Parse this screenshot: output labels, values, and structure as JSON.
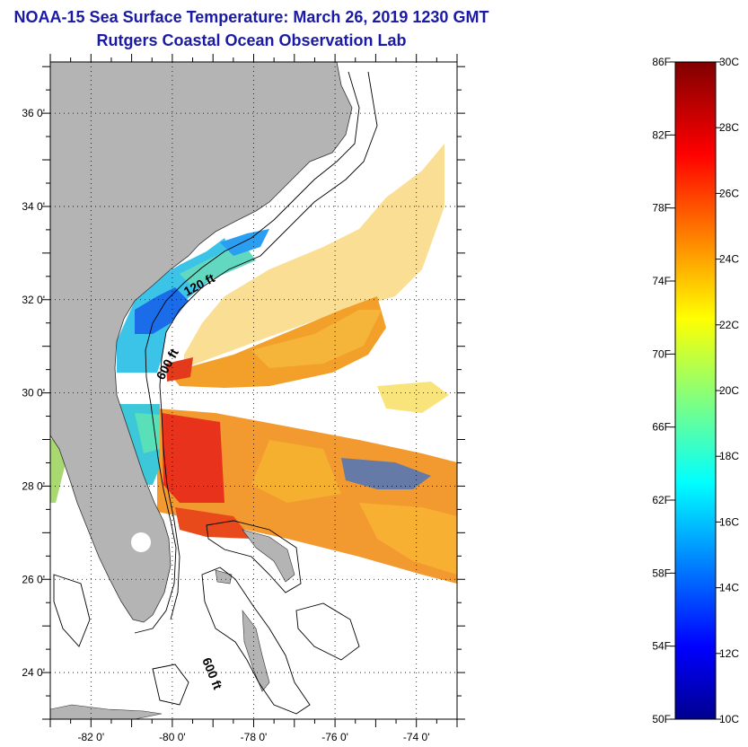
{
  "header": {
    "title": "NOAA-15 Sea Surface Temperature:  March 26, 2019 1230 GMT",
    "subtitle": "Rutgers Coastal Ocean Observation Lab"
  },
  "map": {
    "lat_ticks": [
      {
        "label": "36 0'",
        "lat": 36
      },
      {
        "label": "34 0'",
        "lat": 34
      },
      {
        "label": "32 0'",
        "lat": 32
      },
      {
        "label": "30 0'",
        "lat": 30
      },
      {
        "label": "28 0'",
        "lat": 28
      },
      {
        "label": "26 0'",
        "lat": 26
      },
      {
        "label": "24 0'",
        "lat": 24
      }
    ],
    "lon_ticks": [
      {
        "label": "-82 0'",
        "lon": -82
      },
      {
        "label": "-80 0'",
        "lon": -80
      },
      {
        "label": "-78 0'",
        "lon": -78
      },
      {
        "label": "-76 0'",
        "lon": -76
      },
      {
        "label": "-74 0'",
        "lon": -74
      }
    ],
    "lat_range": [
      23,
      37.1
    ],
    "lon_range": [
      -83,
      -73
    ],
    "contour_labels": {
      "shelf_120": "120 ft",
      "slope_600_north": "600 ft",
      "slope_600_south": "600 ft"
    },
    "land_color": "#b4b4b4",
    "grid": "dotted"
  },
  "colorbar": {
    "fahrenheit_labels": [
      "86F",
      "82F",
      "78F",
      "74F",
      "70F",
      "66F",
      "62F",
      "58F",
      "54F",
      "50F"
    ],
    "celsius_labels": [
      "30C",
      "28C",
      "26C",
      "24C",
      "22C",
      "20C",
      "18C",
      "16C",
      "14C",
      "12C",
      "10C"
    ],
    "range_c": [
      10,
      30
    ],
    "colormap": "jet"
  }
}
